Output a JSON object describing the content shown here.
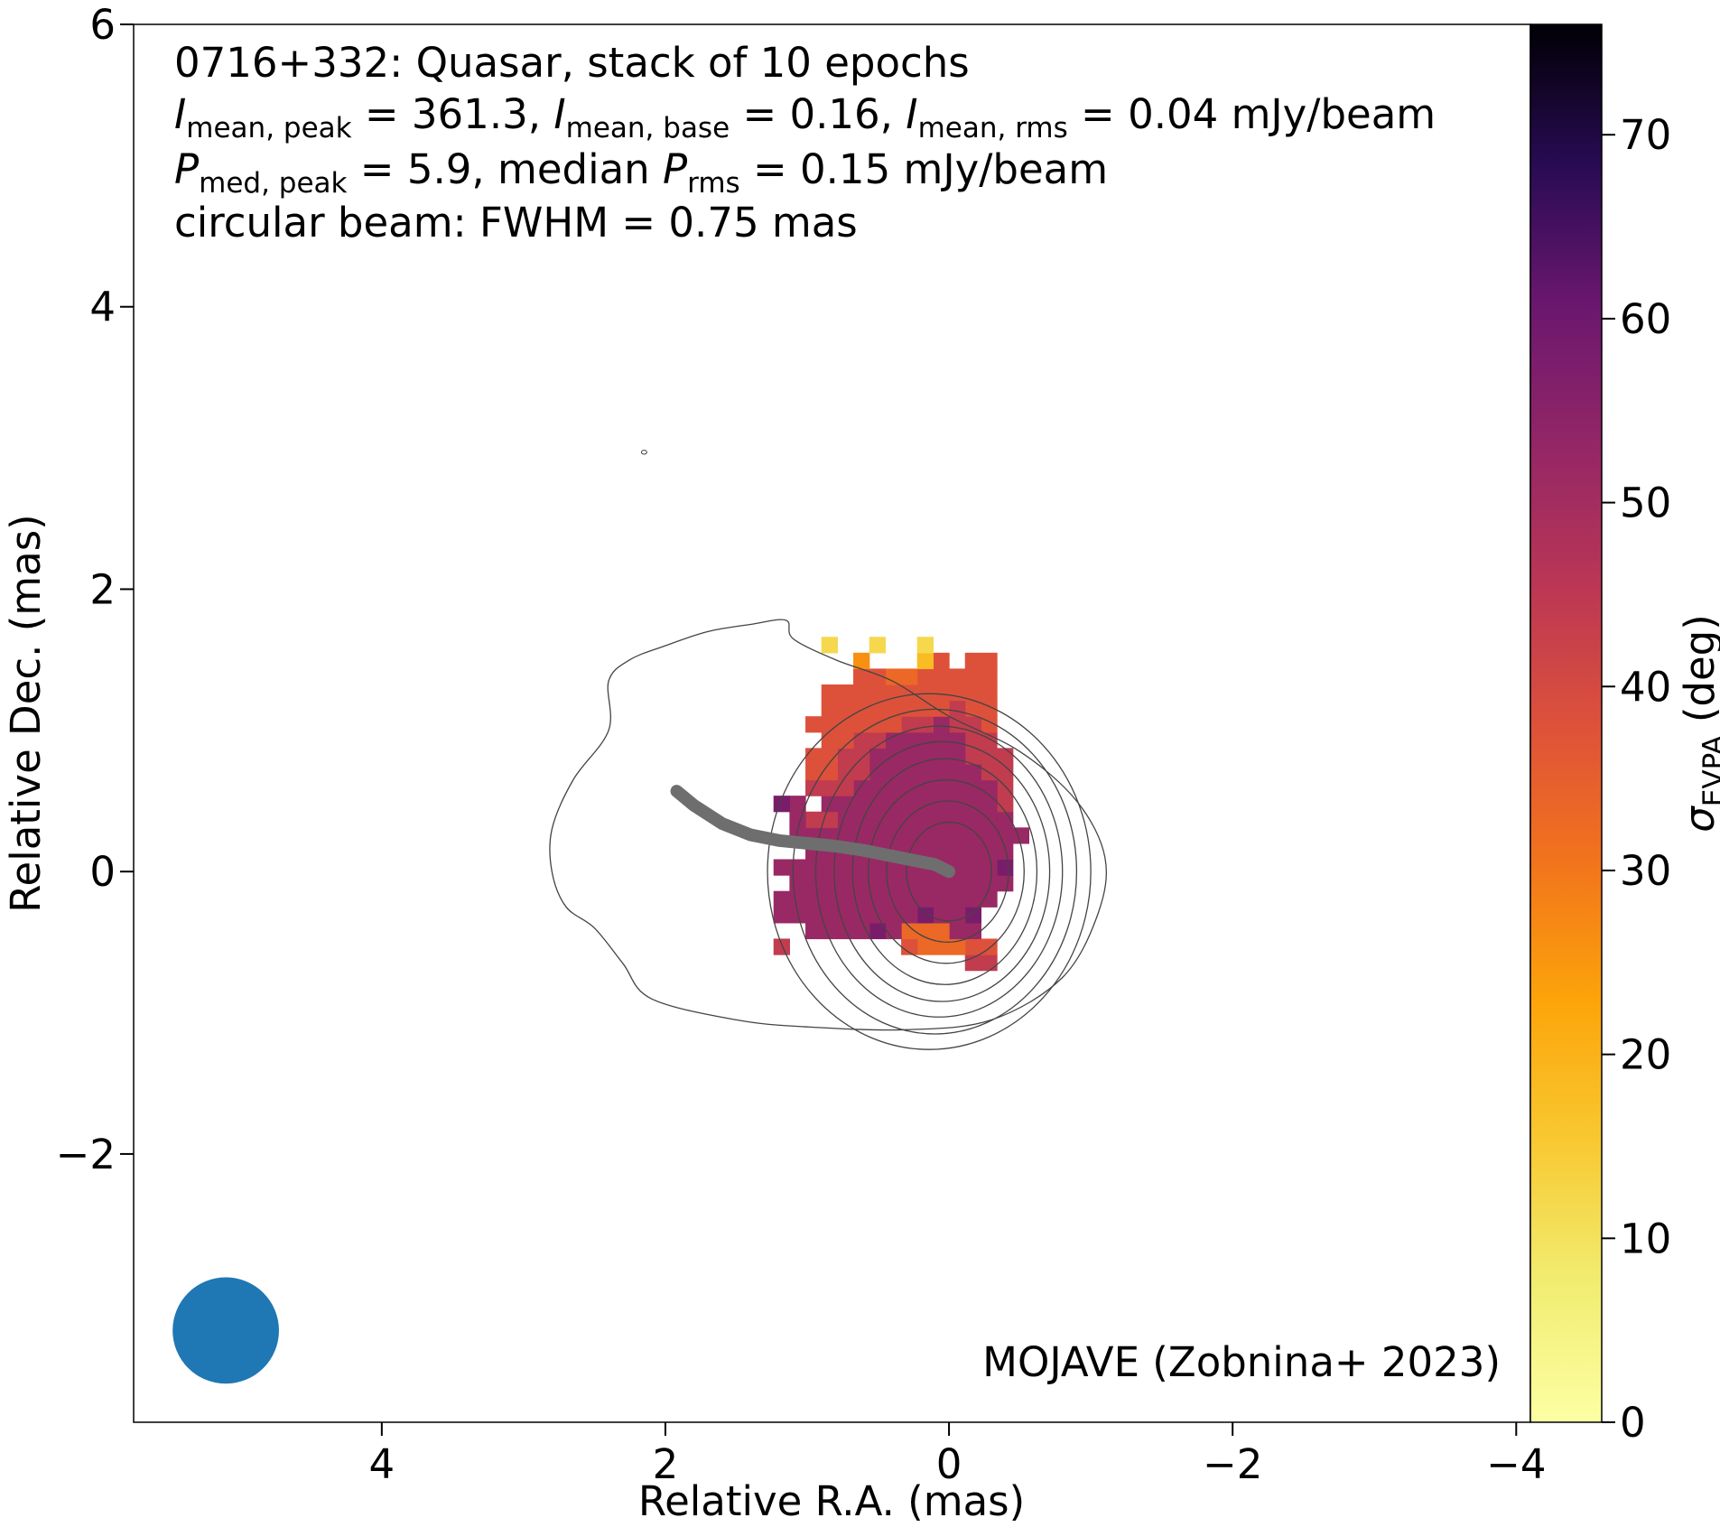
{
  "chart_data": {
    "type": "heatmap",
    "xlabel": "Relative R.A. (mas)",
    "ylabel": "Relative Dec. (mas)",
    "xlim": [
      5.75,
      -4.1
    ],
    "ylim": [
      -3.9,
      6
    ],
    "x_ticks": [
      4,
      2,
      0,
      -2,
      -4
    ],
    "x_tick_labels": [
      "4",
      "2",
      "0",
      "−2",
      "−4"
    ],
    "y_ticks": [
      -2,
      0,
      2,
      4,
      6
    ],
    "y_tick_labels": [
      "−2",
      "0",
      "2",
      "4",
      "6"
    ],
    "grid": false,
    "annotation": {
      "line1": "0716+332: Quasar, stack of 10 epochs",
      "line2": {
        "i_sym": "I",
        "peak_sub": "mean, peak",
        "peak_val": " = 361.3, ",
        "base_sub": "mean, base",
        "base_val": " = 0.16, ",
        "rms_sub": "mean, rms",
        "rms_val": " = 0.04 mJy/beam"
      },
      "line3": {
        "p_sym": "P",
        "peak_sub": "med, peak",
        "peak_val": " = 5.9, median ",
        "rms_sub": "rms",
        "rms_val": " = 0.15 mJy/beam"
      },
      "line4": "circular beam: FWHM = 0.75 mas"
    },
    "credit": "MOJAVE (Zobnina+ 2023)",
    "colorbar": {
      "label_symbol": "σ",
      "label_sub": "EVPA",
      "label_unit": " (deg)",
      "range": [
        0,
        76
      ],
      "ticks": [
        0,
        10,
        20,
        30,
        40,
        50,
        60,
        70
      ],
      "tick_labels": [
        "0",
        "10",
        "20",
        "30",
        "40",
        "50",
        "60",
        "70"
      ],
      "colormap": "inferno_r"
    },
    "beam": {
      "center": [
        5.1,
        -3.25
      ],
      "fwhm": 0.75,
      "color": "#1f77b4"
    },
    "ridge_line": {
      "color": "#6e6e6e",
      "points": [
        [
          1.92,
          0.57
        ],
        [
          1.8,
          0.47
        ],
        [
          1.6,
          0.34
        ],
        [
          1.4,
          0.26
        ],
        [
          1.2,
          0.22
        ],
        [
          1.0,
          0.2
        ],
        [
          0.8,
          0.18
        ],
        [
          0.6,
          0.15
        ],
        [
          0.4,
          0.11
        ],
        [
          0.25,
          0.08
        ],
        [
          0.1,
          0.05
        ],
        [
          0.0,
          0.0
        ]
      ]
    },
    "contours": {
      "color": "#444444",
      "outer": [
        [
          2.4,
          1.35
        ],
        [
          2.25,
          1.5
        ],
        [
          2.0,
          1.6
        ],
        [
          1.7,
          1.7
        ],
        [
          1.4,
          1.75
        ],
        [
          1.15,
          1.78
        ],
        [
          1.1,
          1.65
        ],
        [
          0.8,
          1.5
        ],
        [
          0.4,
          1.35
        ],
        [
          0.0,
          1.1
        ],
        [
          -0.5,
          0.85
        ],
        [
          -0.9,
          0.5
        ],
        [
          -1.1,
          0.1
        ],
        [
          -1.05,
          -0.3
        ],
        [
          -0.8,
          -0.75
        ],
        [
          -0.3,
          -1.05
        ],
        [
          0.3,
          -1.12
        ],
        [
          1.0,
          -1.1
        ],
        [
          1.5,
          -1.05
        ],
        [
          2.1,
          -0.9
        ],
        [
          2.3,
          -0.65
        ],
        [
          2.5,
          -0.4
        ],
        [
          2.7,
          -0.25
        ],
        [
          2.8,
          0.0
        ],
        [
          2.8,
          0.3
        ],
        [
          2.65,
          0.65
        ],
        [
          2.4,
          1.0
        ]
      ],
      "inner": [
        {
          "cx": 0.14,
          "cy": 0.0,
          "rx": 1.14,
          "ry": 1.26
        },
        {
          "cx": 0.1,
          "cy": 0.0,
          "rx": 1.0,
          "ry": 1.15
        },
        {
          "cx": 0.07,
          "cy": 0.0,
          "rx": 0.87,
          "ry": 1.03
        },
        {
          "cx": 0.05,
          "cy": 0.0,
          "rx": 0.76,
          "ry": 0.92
        },
        {
          "cx": 0.03,
          "cy": 0.0,
          "rx": 0.65,
          "ry": 0.8
        },
        {
          "cx": 0.02,
          "cy": 0.0,
          "rx": 0.55,
          "ry": 0.65
        },
        {
          "cx": 0.01,
          "cy": 0.0,
          "rx": 0.43,
          "ry": 0.5
        },
        {
          "cx": 0.0,
          "cy": 0.0,
          "rx": 0.3,
          "ry": 0.35
        }
      ],
      "speck": [
        2.15,
        2.97
      ]
    },
    "pixel_grid": {
      "cell_mas": 0.1125,
      "x0": -0.675,
      "y0": -0.7,
      "rows_from_bottom": [
        "...FF.....................",
        "...EEDDDE.......F.........",
        "....GGDDDGHGGGG...........",
        "....HGGHGGGGGGGGG.........",
        "...GGGGGGGGGGGGGG.........",
        "..GGGGGGGGGGGGGG..........",
        "..HGGGGGGGGGGGGGG.........",
        "..GGGGGGGGGGGGG...........",
        ".GGGGGGGGGGGGGGG..........",
        "..GGGGGGGGGGGFFG..........",
        "..FGGGGGGGGGGG.GH.........",
        "..FGGGGGGGGGFFF...........",
        "..FFGGGGGGGFFEE...........",
        "..FFFGGGGGGFFEE...........",
        "...FFGGGGGFFEE............",
        "...EFFGFFEEEEEE...........",
        "...EEFEEEEEEEE............",
        "...EEEEEEEEEEE............",
        "...EEEEEDDEE..............",
        "...EE.EB...C..............",
        ".......A..A..A............"
      ],
      "levels": {
        "A": 12,
        "B": 18,
        "C": 26,
        "D": 33,
        "E": 38,
        "F": 44,
        "G": 52,
        "H": 58
      }
    }
  }
}
